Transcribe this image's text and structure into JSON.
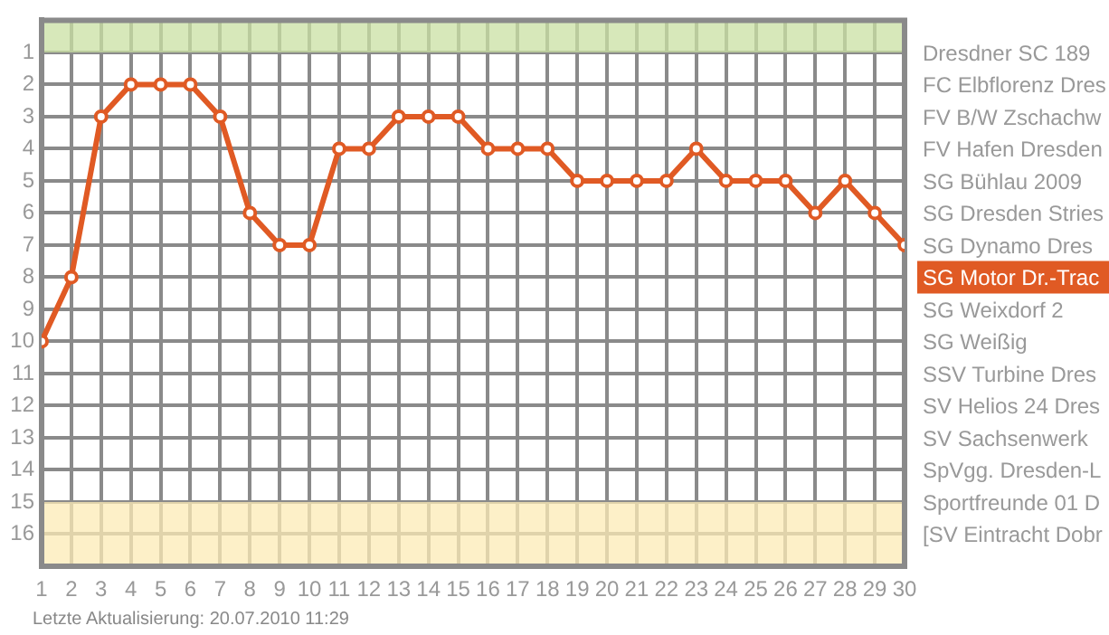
{
  "chart_data": {
    "type": "line",
    "x": [
      1,
      2,
      3,
      4,
      5,
      6,
      7,
      8,
      9,
      10,
      11,
      12,
      13,
      14,
      15,
      16,
      17,
      18,
      19,
      20,
      21,
      22,
      23,
      24,
      25,
      26,
      27,
      28,
      29,
      30
    ],
    "series": [
      {
        "name": "SG Motor Dr.-Trac",
        "color": "#e05a24",
        "values": [
          10,
          8,
          3,
          2,
          2,
          2,
          3,
          6,
          7,
          7,
          4,
          4,
          3,
          3,
          3,
          4,
          4,
          4,
          5,
          5,
          5,
          5,
          4,
          5,
          5,
          5,
          6,
          5,
          6,
          7
        ]
      }
    ],
    "xlim": [
      1,
      30
    ],
    "xticks": [
      1,
      2,
      3,
      4,
      5,
      6,
      7,
      8,
      9,
      10,
      11,
      12,
      13,
      14,
      15,
      16,
      17,
      18,
      19,
      20,
      21,
      22,
      23,
      24,
      25,
      26,
      27,
      28,
      29,
      30
    ],
    "ylim": [
      17,
      0
    ],
    "yticks": [
      1,
      2,
      3,
      4,
      5,
      6,
      7,
      8,
      9,
      10,
      11,
      12,
      13,
      14,
      15,
      16
    ],
    "bands": [
      {
        "axis": "y",
        "from": 0,
        "to": 1,
        "color": "#c9e0a3"
      },
      {
        "axis": "y",
        "from": 15,
        "to": 17,
        "color": "#fcebb6"
      }
    ],
    "grid": true,
    "marker": "circle",
    "line_style": "solid",
    "legend": "right",
    "y2_categories": [
      "Dresdner SC 189",
      "FC Elbflorenz Dres",
      "FV B/W Zschachw",
      "FV Hafen Dresden",
      "SG Bühlau 2009",
      "SG Dresden Stries",
      "SG Dynamo Dres",
      null,
      "SG Weixdorf 2",
      "SG Weißig",
      "SSV Turbine Dres",
      "SV Helios 24 Dres",
      "SV Sachsenwerk",
      "SpVgg. Dresden-L",
      "Sportfreunde 01 D",
      "[SV Eintracht Dobr"
    ],
    "annotations": [
      "Letzte Aktualisierung: 20.07.2010 11:29"
    ]
  }
}
